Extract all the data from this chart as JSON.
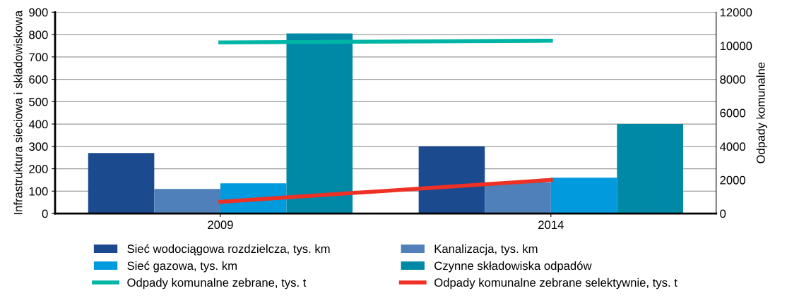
{
  "chart_data": {
    "type": "bar",
    "categories": [
      "2009",
      "2014"
    ],
    "ylabel": "Infrastruktura sieciowa i składowiskowa",
    "y2label": "Odpady komunalne",
    "ylim": [
      0,
      900
    ],
    "yticks": [
      0,
      100,
      200,
      300,
      400,
      500,
      600,
      700,
      800,
      900
    ],
    "y2lim": [
      0,
      12000
    ],
    "y2ticks": [
      0,
      2000,
      4000,
      6000,
      8000,
      10000,
      12000
    ],
    "grid": "y",
    "legend": "bottom",
    "series": [
      {
        "name": "Sieć wodociągowa rozdzielcza, tys. km",
        "color": "#1b4a8f",
        "values": [
          270,
          300
        ]
      },
      {
        "name": "Kanalizacja, tys. km",
        "color": "#4f80b9",
        "values": [
          110,
          140
        ]
      },
      {
        "name": "Sieć gazowa, tys. km",
        "color": "#009add",
        "values": [
          135,
          160
        ]
      },
      {
        "name": "Czynne składowiska odpadów",
        "color": "#0089a6",
        "values": [
          805,
          400
        ]
      },
      {
        "name": "Odpady komunalne zebrane, tys. t",
        "color": "#00b5a5",
        "type": "line",
        "axis": "y2",
        "values": [
          10200,
          10300
        ]
      },
      {
        "name": "Odpady komunalne zebrane selektywnie, tys. t",
        "color": "#ee3124",
        "type": "line",
        "axis": "y2",
        "values": [
          700,
          2000
        ]
      }
    ]
  }
}
